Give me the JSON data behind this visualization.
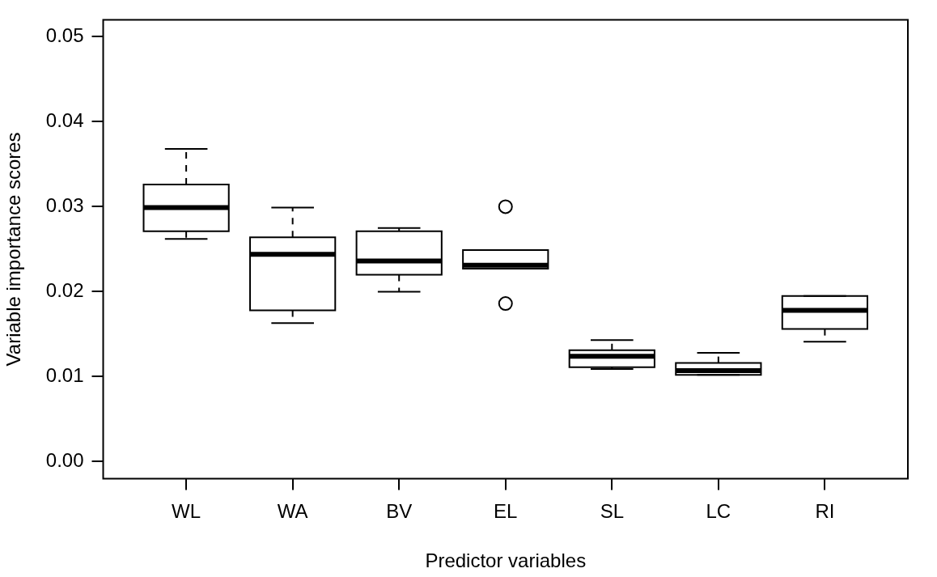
{
  "chart_data": {
    "type": "box",
    "xlabel": "Predictor variables",
    "ylabel": "Variable importance scores",
    "categories": [
      "WL",
      "WA",
      "BV",
      "EL",
      "SL",
      "LC",
      "RI"
    ],
    "ylim": [
      -0.002,
      0.052
    ],
    "yticks": [
      {
        "value": 0,
        "label": "0.00"
      },
      {
        "value": 0.01,
        "label": "0.01"
      },
      {
        "value": 0.02,
        "label": "0.02"
      },
      {
        "value": 0.03,
        "label": "0.03"
      },
      {
        "value": 0.04,
        "label": "0.04"
      },
      {
        "value": 0.05,
        "label": "0.05"
      }
    ],
    "color": "#000000",
    "grid": false,
    "legend": false,
    "boxes": [
      {
        "low": 0.0262,
        "q1": 0.0271,
        "median": 0.0299,
        "q3": 0.0326,
        "high": 0.0368
      },
      {
        "low": 0.0163,
        "q1": 0.0178,
        "median": 0.0244,
        "q3": 0.0264,
        "high": 0.0299
      },
      {
        "low": 0.02,
        "q1": 0.022,
        "median": 0.0236,
        "q3": 0.0271,
        "high": 0.0275
      },
      {
        "low": 0.0227,
        "q1": 0.0227,
        "median": 0.0231,
        "q3": 0.0249,
        "high": 0.0249,
        "outliers": [
          0.03,
          0.0186
        ]
      },
      {
        "low": 0.0109,
        "q1": 0.0111,
        "median": 0.0124,
        "q3": 0.0131,
        "high": 0.0143
      },
      {
        "low": 0.0102,
        "q1": 0.0102,
        "median": 0.0107,
        "q3": 0.0116,
        "high": 0.0128
      },
      {
        "low": 0.0141,
        "q1": 0.0156,
        "median": 0.0178,
        "q3": 0.0195,
        "high": 0.0195
      }
    ]
  }
}
